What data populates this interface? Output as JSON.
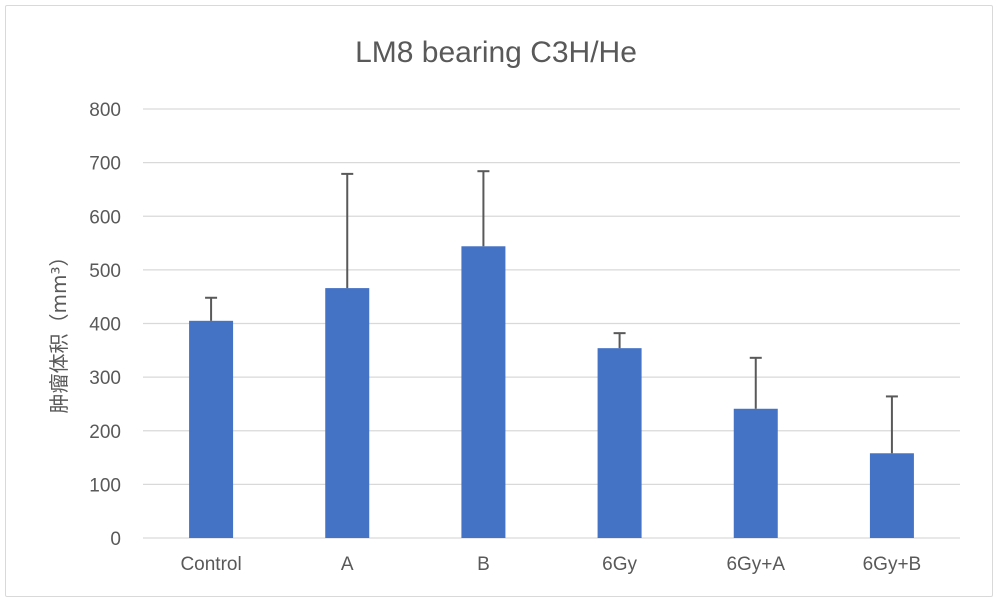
{
  "chart_data": {
    "type": "bar",
    "title": "LM8 bearing C3H/He",
    "xlabel": "",
    "ylabel": "肿瘤体积（mm³）",
    "categories": [
      "Control",
      "A",
      "B",
      "6Gy",
      "6Gy+A",
      "6Gy+B"
    ],
    "values": [
      405,
      466,
      544,
      354,
      241,
      158
    ],
    "error_upper": [
      448,
      679,
      684,
      382,
      336,
      264
    ],
    "ylim": [
      0,
      800
    ],
    "yticks": [
      "0",
      "100",
      "200",
      "300",
      "400",
      "500",
      "600",
      "700",
      "800"
    ],
    "grid": true,
    "legend": "none",
    "bar_color": "#4472C4",
    "error_color": "#595959"
  }
}
